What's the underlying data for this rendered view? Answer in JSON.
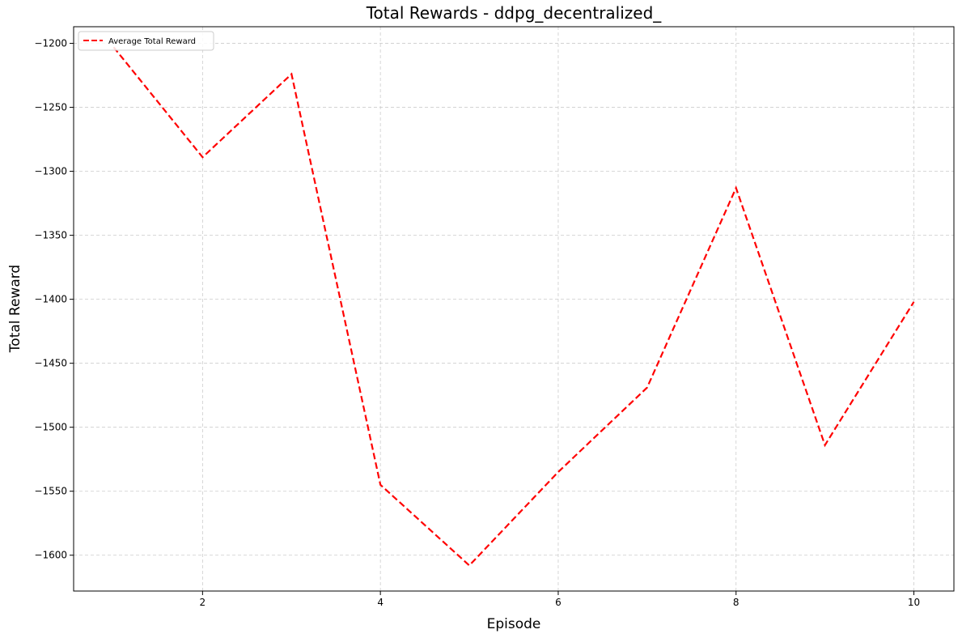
{
  "chart_data": {
    "type": "line",
    "title": "Total Rewards - ddpg_decentralized_",
    "xlabel": "Episode",
    "ylabel": "Total Reward",
    "x": [
      1,
      2,
      3,
      4,
      5,
      6,
      7,
      8,
      9,
      10
    ],
    "series": [
      {
        "name": "Average Total Reward",
        "values": [
          -1203,
          -1289,
          -1224,
          -1545,
          -1608,
          -1535,
          -1469,
          -1313,
          -1514,
          -1402
        ],
        "color": "#ff0000",
        "style": "dashed"
      }
    ],
    "xlim": [
      0.55,
      10.45
    ],
    "ylim": [
      -1628,
      -1187
    ],
    "xticks": [
      2,
      4,
      6,
      8,
      10
    ],
    "yticks": [
      -1200,
      -1250,
      -1300,
      -1350,
      -1400,
      -1450,
      -1500,
      -1550,
      -1600
    ],
    "grid": true,
    "grid_color": "#cccccc",
    "legend_position": "top-left"
  }
}
